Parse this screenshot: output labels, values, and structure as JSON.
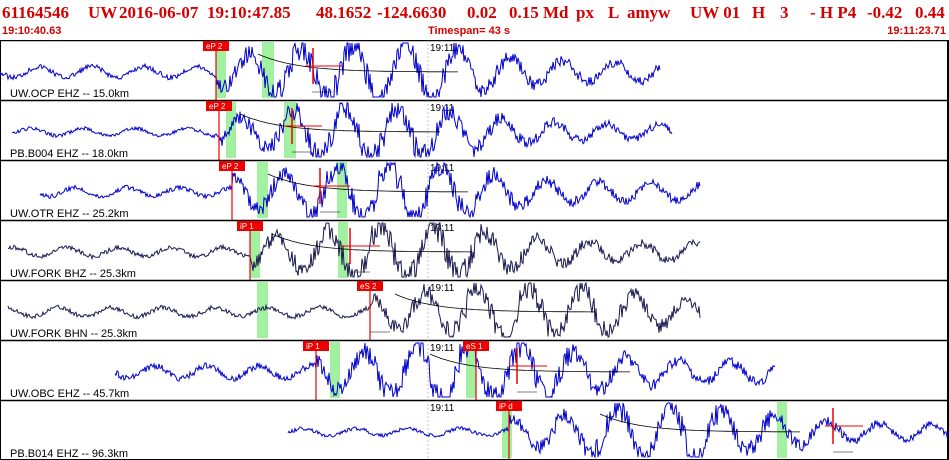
{
  "header": {
    "event_id": "61164546",
    "network": "UW",
    "date": "2016-06-07",
    "time": "19:10:47.85",
    "lat": "48.1652",
    "lon": "-124.6630",
    "depth": "0.02",
    "magnitude": "0.15 Md",
    "type": "px",
    "review": "L",
    "author": "amyw",
    "source": "UW 01",
    "quality": "H",
    "version": "3",
    "flag": "- H P4",
    "val1": "-0.42",
    "val2": "0.44"
  },
  "timebar": {
    "start": "19:10:40.63",
    "span_label": "Timespan=  43 s",
    "end": "19:11:23.71"
  },
  "colors": {
    "header_text": "#d40000",
    "trace_blue": "#0000cc",
    "trace_dark": "#1a1a50",
    "pick_red": "#ee0000",
    "window_green": "#90ee90",
    "panel_border": "#000000"
  },
  "tick_text": "19:11",
  "panels": [
    {
      "label": "UW.OCP EHZ -- 15.0km",
      "color": "trace_blue",
      "label_x": 10,
      "start": 0,
      "end": 660,
      "amp": 6,
      "picks": [
        {
          "label": "eP 2",
          "x": 216
        }
      ],
      "s_pick": {
        "x": 313
      },
      "green": [
        [
          216,
          226
        ],
        [
          262,
          274
        ]
      ],
      "decay_from": 258,
      "coda_x": 312
    },
    {
      "label": "PB.B004 EHZ -- 18.0km",
      "color": "trace_blue",
      "label_x": 10,
      "start": 12,
      "end": 672,
      "amp": 4,
      "picks": [
        {
          "label": "eP 2",
          "x": 219
        }
      ],
      "s_pick": {
        "x": 292
      },
      "green": [
        [
          226,
          236
        ],
        [
          284,
          296
        ]
      ],
      "decay_from": 240,
      "coda_x": 292
    },
    {
      "label": "UW.OTR EHZ -- 25.2km",
      "color": "trace_blue",
      "label_x": 10,
      "start": 40,
      "end": 700,
      "amp": 5,
      "picks": [
        {
          "label": "eP 2",
          "x": 232
        }
      ],
      "s_pick": {
        "x": 320
      },
      "green": [
        [
          257,
          268
        ],
        [
          337,
          347
        ]
      ],
      "decay_from": 268,
      "coda_x": 320
    },
    {
      "label": "UW.FORK BHZ -- 25.3km",
      "color": "trace_dark",
      "label_x": 10,
      "start": 8,
      "end": 700,
      "amp": 5,
      "picks": [
        {
          "label": "iP 1",
          "x": 250
        }
      ],
      "s_pick": {
        "x": 350
      },
      "green": [
        [
          250,
          260
        ],
        [
          338,
          348
        ]
      ],
      "decay_from": 272,
      "coda_x": 350
    },
    {
      "label": "UW.FORK BHN -- 25.3km",
      "color": "trace_dark",
      "label_x": 10,
      "start": 8,
      "end": 700,
      "amp": 5,
      "picks": [
        {
          "label": "eS 2",
          "x": 370
        }
      ],
      "s_pick": null,
      "green": [
        [
          257,
          268
        ]
      ],
      "decay_from": 395,
      "coda_x": 370
    },
    {
      "label": "UW.OBC EHZ -- 45.7km",
      "color": "trace_blue",
      "label_x": 10,
      "start": 115,
      "end": 775,
      "amp": 7,
      "picks": [
        {
          "label": "iP 1",
          "x": 316
        },
        {
          "label": "eS 1",
          "x": 476
        }
      ],
      "s_pick": {
        "x": 517
      },
      "green": [
        [
          330,
          340
        ],
        [
          466,
          476
        ]
      ],
      "decay_from": 430,
      "coda_x": 517
    },
    {
      "label": "PB.B014 EHZ -- 96.3km",
      "color": "trace_blue",
      "label_x": 10,
      "start": 288,
      "end": 949,
      "amp": 4,
      "picks": [
        {
          "label": "iP d",
          "x": 509
        }
      ],
      "s_pick": {
        "x": 833
      },
      "green": [
        [
          502,
          512
        ],
        [
          777,
          787
        ]
      ],
      "decay_from": 600,
      "coda_x": 833
    }
  ]
}
